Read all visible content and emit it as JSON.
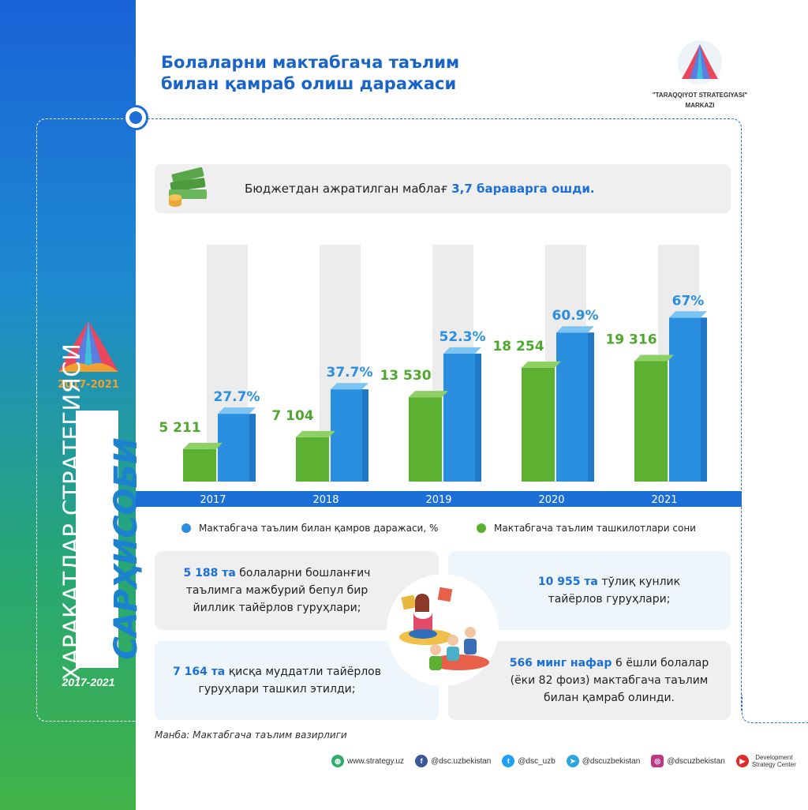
{
  "title_line1": "Болаларни мактабгача таълим",
  "title_line2": "билан қамраб олиш даражаси",
  "brand": {
    "line1": "\"TARAQQIYOT STRATEGIYASI\"",
    "line2": "MARKAZI"
  },
  "sidebar": {
    "years_top": "2017-2021",
    "line1": "ҲАРАКАТЛАР СТРАТЕГИЯСИ",
    "line2": "САРҲИСОБИ",
    "years_bottom": "2017-2021"
  },
  "budget": {
    "text": "Бюджетдан ажратилган маблағ ",
    "highlight": "3,7 бараварга ошди."
  },
  "chart_data": {
    "type": "bar",
    "categories": [
      "2017",
      "2018",
      "2019",
      "2020",
      "2021"
    ],
    "series": [
      {
        "name": "Мактабгача таълим ташкилотлари сони",
        "values": [
          5211,
          7104,
          13530,
          18254,
          19316
        ],
        "labels": [
          "5 211",
          "7 104",
          "13 530",
          "18 254",
          "19 316"
        ],
        "color": "#5cb133"
      },
      {
        "name": "Мактабгача таълим билан қамров даражаси, %",
        "values": [
          27.7,
          37.7,
          52.3,
          60.9,
          67
        ],
        "labels": [
          "27.7%",
          "37.7%",
          "52.3%",
          "60.9%",
          "67%"
        ],
        "color": "#2b8fe0"
      }
    ],
    "ylim_percent": [
      0,
      100
    ]
  },
  "legend": {
    "blue": "Мактабгача таълим билан қамров даражаси, %",
    "green": "Мактабгача таълим ташкилотлари сони"
  },
  "facts": {
    "b1_bold": "5 188 та",
    "b1_line1": " болаларни бошланғич",
    "b1_line2": "таълимга мажбурий бепул бир",
    "b1_line3": "йиллик тайёрлов гуруҳлари;",
    "b2_bold": "10 955 та",
    "b2_line1": " тўлиқ кунлик",
    "b2_line2": "тайёрлов гуруҳлари;",
    "b3_bold": "7 164 та",
    "b3_line1": " қисқа муддатли тайёрлов",
    "b3_line2": "гуруҳлари ташкил этилди;",
    "b4_bold": "566 минг нафар",
    "b4_line1": " 6 ёшли болалар",
    "b4_line2": "(ёки 82 фоиз) мактабгача таълим",
    "b4_line3": "билан қамраб олинди."
  },
  "source": "Манба: Мактабгача таълим вазирлиги",
  "footer": {
    "web": "www.strategy.uz",
    "facebook": "@dsc.uzbekistan",
    "twitter": "@dsc_uzb",
    "telegram": "@dscuzbekistan",
    "instagram": "@dscuzbekistan",
    "dsc_line1": "Development",
    "dsc_line2": "Strategy Center"
  },
  "colors": {
    "accent": "#1c6fd6",
    "green": "#5cb133",
    "blue": "#2b8fe0"
  }
}
